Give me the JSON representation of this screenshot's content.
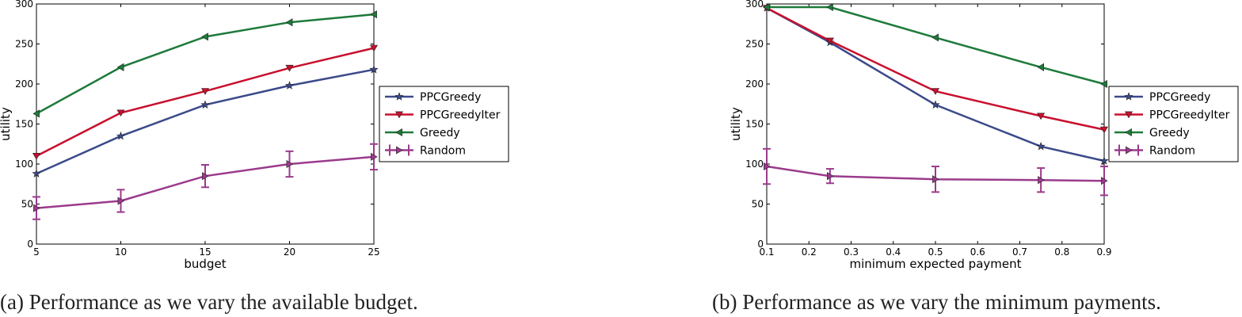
{
  "chart_data": [
    {
      "type": "line",
      "title": "",
      "xlabel": "budget",
      "ylabel": "utility",
      "x": [
        5,
        10,
        15,
        20,
        25
      ],
      "xlim": [
        5,
        25
      ],
      "ylim": [
        0,
        300
      ],
      "xticks": [
        "5",
        "10",
        "15",
        "20",
        "25"
      ],
      "yticks": [
        "0",
        "50",
        "100",
        "150",
        "200",
        "250",
        "300"
      ],
      "reference_line": 300,
      "legend_position": "right, outside plot",
      "series": [
        {
          "name": "PPCGreedy",
          "color": "#3b4a8a",
          "marker": "star",
          "values": [
            88,
            135,
            174,
            198,
            218
          ]
        },
        {
          "name": "PPCGreedyIter",
          "color": "#c8102e",
          "marker": "triangle-down",
          "values": [
            110,
            164,
            191,
            220,
            245
          ]
        },
        {
          "name": "Greedy",
          "color": "#1d7a3a",
          "marker": "triangle-left",
          "values": [
            163,
            221,
            259,
            277,
            287
          ]
        },
        {
          "name": "Random",
          "color": "#9b3a8c",
          "marker": "triangle-right",
          "values": [
            45,
            54,
            85,
            100,
            109
          ],
          "error": [
            14,
            14,
            14,
            16,
            16
          ]
        }
      ],
      "caption": "(a) Performance as we vary the available budget."
    },
    {
      "type": "line",
      "title": "",
      "xlabel": "minimum expected payment",
      "ylabel": "utility",
      "x": [
        0.1,
        0.25,
        0.5,
        0.75,
        0.9
      ],
      "xlim": [
        0.1,
        0.9
      ],
      "ylim": [
        0,
        300
      ],
      "xticks": [
        "0.1",
        "0.2",
        "0.3",
        "0.4",
        "0.5",
        "0.6",
        "0.7",
        "0.8",
        "0.9"
      ],
      "yticks": [
        "0",
        "50",
        "100",
        "150",
        "200",
        "250",
        "300"
      ],
      "reference_line": 300,
      "legend_position": "right, outside plot",
      "series": [
        {
          "name": "PPCGreedy",
          "color": "#3b4a8a",
          "marker": "star",
          "values": [
            295,
            252,
            174,
            122,
            104
          ]
        },
        {
          "name": "PPCGreedyIter",
          "color": "#c8102e",
          "marker": "triangle-down",
          "values": [
            295,
            254,
            191,
            160,
            143
          ]
        },
        {
          "name": "Greedy",
          "color": "#1d7a3a",
          "marker": "triangle-left",
          "values": [
            296,
            296,
            258,
            221,
            200
          ]
        },
        {
          "name": "Random",
          "color": "#9b3a8c",
          "marker": "triangle-right",
          "values": [
            97,
            85,
            81,
            80,
            79
          ],
          "error": [
            22,
            9,
            16,
            15,
            18
          ]
        }
      ],
      "caption": "(b) Performance as we vary the minimum payments."
    }
  ]
}
